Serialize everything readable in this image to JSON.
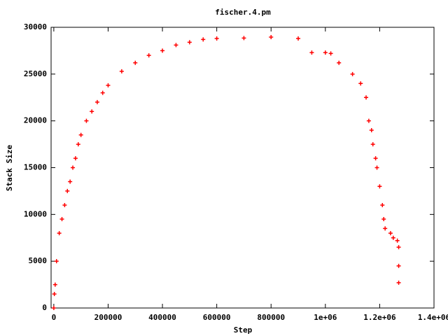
{
  "chart_data": {
    "type": "scatter",
    "title": "fischer.4.pm",
    "xlabel": "Step",
    "ylabel": "Stack Size",
    "color": "#ff0000",
    "marker": "+",
    "x": [
      0,
      2000,
      5000,
      10000,
      20000,
      30000,
      40000,
      50000,
      60000,
      70000,
      80000,
      90000,
      100000,
      120000,
      140000,
      160000,
      180000,
      200000,
      250000,
      300000,
      350000,
      400000,
      450000,
      500000,
      550000,
      600000,
      700000,
      800000,
      900000,
      950000,
      1000000,
      1020000,
      1050000,
      1100000,
      1130000,
      1150000,
      1160000,
      1170000,
      1175000,
      1185000,
      1190000,
      1200000,
      1210000,
      1215000,
      1220000,
      1240000,
      1250000,
      1265000,
      1270000,
      1270000,
      1270000
    ],
    "values": [
      0,
      1500,
      2500,
      5000,
      8000,
      9500,
      11000,
      12500,
      13500,
      15000,
      16000,
      17500,
      18500,
      20000,
      21000,
      22000,
      23000,
      23800,
      25300,
      26200,
      27000,
      27500,
      28100,
      28400,
      28700,
      28800,
      28850,
      28950,
      28800,
      27300,
      27300,
      27200,
      26200,
      25000,
      24000,
      22500,
      20000,
      19000,
      17500,
      16000,
      15000,
      13000,
      11000,
      9500,
      8500,
      8000,
      7500,
      7200,
      6500,
      4500,
      2700
    ],
    "xlim": [
      -10000,
      1400000
    ],
    "xticks": [
      0,
      200000,
      400000,
      600000,
      800000,
      {
        "value": 1000000,
        "label": "1e+06"
      },
      {
        "value": 1200000,
        "label": "1.2e+06"
      },
      {
        "value": 1400000,
        "label": "1.4e+06"
      }
    ],
    "ylim": [
      0,
      30000
    ],
    "yticks": [
      0,
      5000,
      10000,
      15000,
      20000,
      25000,
      30000
    ]
  }
}
